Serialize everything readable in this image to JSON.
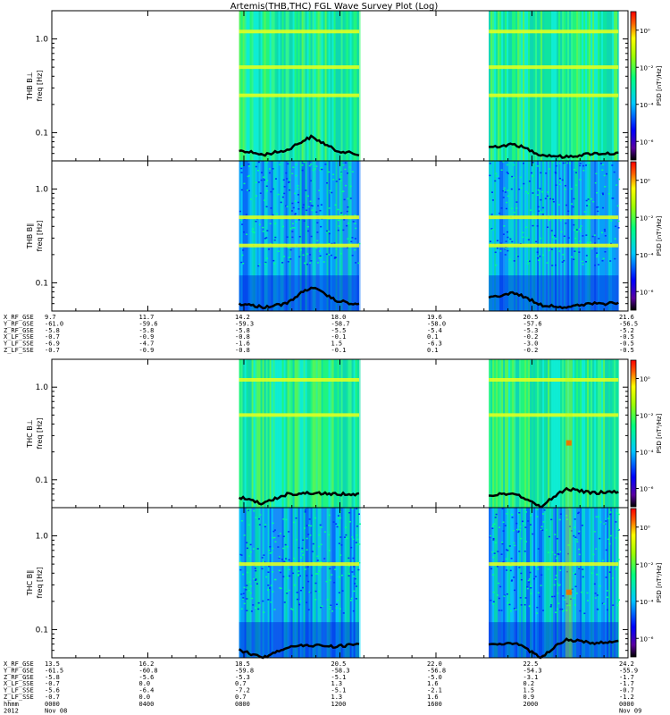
{
  "chart_data": {
    "type": "heatmap",
    "title": "Artemis(THB,THC) FGL Wave Survey Plot (Log)",
    "xaxis": {
      "time_start": "2012-11-08 00:00",
      "time_end": "2012-11-09 00:00",
      "major_ticks_hours": [
        0,
        4,
        8,
        12,
        16,
        20,
        24
      ]
    },
    "yaxis": {
      "scale": "log",
      "ylim": [
        0.05,
        2.0
      ],
      "tick_values": [
        0.1,
        1.0
      ],
      "tick_labels": [
        "0.1",
        "1.0"
      ]
    },
    "colorbar": {
      "scale": "log",
      "range": [
        1e-07,
        10.0
      ],
      "tick_labels": [
        "10⁰",
        "10⁻²",
        "10⁻⁴",
        "10⁻⁶"
      ],
      "tick_exponents": [
        0,
        -2,
        -4,
        -6
      ],
      "label": "PSD [nT²/Hz]"
    },
    "data_intervals_hours": [
      [
        7.8,
        12.8
      ],
      [
        18.2,
        23.6
      ]
    ],
    "panels": [
      {
        "id": "thb-bperp",
        "probe": "THB",
        "component": "B⊥",
        "ylabel": "freq [Hz]",
        "probe_label": "THB B⊥",
        "lines": [
          0.25,
          0.5,
          1.2
        ],
        "bursts": [],
        "trace": [
          0.065,
          0.058,
          0.065,
          0.09,
          0.065,
          0.058,
          0.07,
          0.075,
          0.058,
          0.055,
          0.06,
          0.06
        ],
        "bg": "green"
      },
      {
        "id": "thb-bpar",
        "probe": "THB",
        "component": "B∥",
        "ylabel": "freq [Hz]",
        "probe_label": "THB B∥",
        "lines": [
          0.25,
          0.5
        ],
        "bursts": [],
        "trace": [
          0.06,
          0.055,
          0.06,
          0.09,
          0.065,
          0.058,
          0.07,
          0.078,
          0.058,
          0.055,
          0.06,
          0.06
        ],
        "bg": "cyan"
      },
      {
        "id": "thc-bperp",
        "probe": "THC",
        "component": "B⊥",
        "ylabel": "freq [Hz]",
        "probe_label": "THC B⊥",
        "lines": [
          0.5,
          1.2
        ],
        "bursts": [
          [
            21.5,
            0.25
          ]
        ],
        "trace": [
          0.065,
          0.055,
          0.07,
          0.072,
          0.07,
          0.07,
          0.068,
          0.072,
          0.05,
          0.08,
          0.072,
          0.075
        ],
        "bg": "green"
      },
      {
        "id": "thc-bpar",
        "probe": "THC",
        "component": "B∥",
        "ylabel": "freq [Hz]",
        "probe_label": "THC B∥",
        "lines": [
          0.5
        ],
        "bursts": [
          [
            21.5,
            0.25
          ]
        ],
        "trace": [
          0.06,
          0.05,
          0.065,
          0.068,
          0.066,
          0.07,
          0.068,
          0.072,
          0.05,
          0.078,
          0.072,
          0.074
        ],
        "bg": "cyan"
      }
    ],
    "ephemeris_blocks": [
      {
        "id": "thb-ephem",
        "rows": [
          {
            "label": "X_RF_GSE",
            "values": [
              "9.7",
              "11.7",
              "14.2",
              "18.0",
              "19.6",
              "20.5",
              "21.6"
            ]
          },
          {
            "label": "Y_RF_GSE",
            "values": [
              "-61.0",
              "-59.6",
              "-59.3",
              "-58.7",
              "-58.0",
              "-57.6",
              "-56.5"
            ]
          },
          {
            "label": "Z_RF_GSE",
            "values": [
              "-5.8",
              "-5.8",
              "-5.8",
              "-5.5",
              "-5.4",
              "-5.3",
              "-5.2"
            ]
          },
          {
            "label": "X_LF_SSE",
            "values": [
              "-0.7",
              "-0.9",
              "-0.8",
              "-0.1",
              "0.1",
              "-0.2",
              "-0.5"
            ]
          },
          {
            "label": "Y_LF_SSE",
            "values": [
              "-6.9",
              "-4.7",
              "-1.6",
              "1.5",
              "-6.3",
              "-3.0",
              "-0.5"
            ]
          },
          {
            "label": "Z_LF_SSE",
            "values": [
              "-0.7",
              "-0.9",
              "-0.8",
              "-0.1",
              "0.1",
              "-0.2",
              "-0.5"
            ]
          }
        ]
      },
      {
        "id": "thc-ephem",
        "rows": [
          {
            "label": "X_RF_GSE",
            "values": [
              "13.5",
              "16.2",
              "18.5",
              "20.5",
              "22.0",
              "22.5",
              "24.2"
            ]
          },
          {
            "label": "Y_RF_GSE",
            "values": [
              "-61.5",
              "-60.8",
              "-59.8",
              "-58.3",
              "-56.8",
              "-54.3",
              "-55.9"
            ]
          },
          {
            "label": "Z_RF_GSE",
            "values": [
              "-5.8",
              "-5.6",
              "-5.3",
              "-5.1",
              "-5.0",
              "-3.1",
              "-1.7"
            ]
          },
          {
            "label": "X_LF_SSE",
            "values": [
              "-0.7",
              "0.0",
              "0.7",
              "1.3",
              "1.6",
              "0.2",
              "-1.7"
            ]
          },
          {
            "label": "Y_LF_SSE",
            "values": [
              "-5.6",
              "-6.4",
              "-7.2",
              "-5.1",
              "-2.1",
              "1.5",
              "-0.7"
            ]
          },
          {
            "label": "Z_LF_SSE",
            "values": [
              "-0.7",
              "0.0",
              "0.7",
              "1.3",
              "1.6",
              "0.9",
              "-1.2"
            ]
          }
        ]
      }
    ],
    "time_rows": [
      {
        "label": "hhmm",
        "values": [
          "0000",
          "0400",
          "0800",
          "1200",
          "1600",
          "2000",
          "0000"
        ]
      },
      {
        "label": "2012",
        "values": [
          "Nov 08",
          "",
          "",
          "",
          "",
          "",
          "Nov 09"
        ]
      }
    ]
  }
}
